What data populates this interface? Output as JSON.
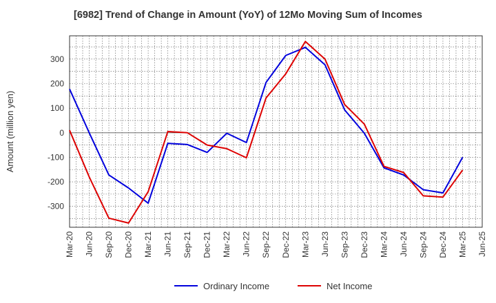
{
  "chart_data": {
    "type": "line",
    "title": "[6982]  Trend of Change in Amount (YoY) of 12Mo Moving Sum of Incomes",
    "xlabel": "",
    "ylabel": "Amount (million yen)",
    "categories": [
      "Mar-20",
      "Jun-20",
      "Sep-20",
      "Dec-20",
      "Mar-21",
      "Jun-21",
      "Sep-21",
      "Dec-21",
      "Mar-22",
      "Jun-22",
      "Sep-22",
      "Dec-22",
      "Mar-23",
      "Jun-23",
      "Sep-23",
      "Dec-23",
      "Mar-24",
      "Jun-24",
      "Sep-24",
      "Dec-24",
      "Mar-25",
      "Jun-25"
    ],
    "ylim": [
      -385,
      395
    ],
    "yticks": [
      300,
      200,
      100,
      0,
      -100,
      -200,
      -300
    ],
    "grid": true,
    "legend_position": "bottom",
    "series": [
      {
        "name": "Ordinary Income",
        "color": "#0000dd",
        "values": [
          178,
          0,
          -172,
          -225,
          -287,
          -43,
          -48,
          -80,
          -2,
          -40,
          205,
          315,
          348,
          277,
          93,
          -2,
          -143,
          -172,
          -232,
          -245,
          -100,
          null
        ]
      },
      {
        "name": "Net Income",
        "color": "#dd0000",
        "values": [
          10,
          -180,
          -348,
          -368,
          -240,
          5,
          0,
          -50,
          -65,
          -102,
          142,
          240,
          372,
          300,
          115,
          35,
          -137,
          -162,
          -257,
          -262,
          -152,
          null
        ]
      }
    ]
  }
}
